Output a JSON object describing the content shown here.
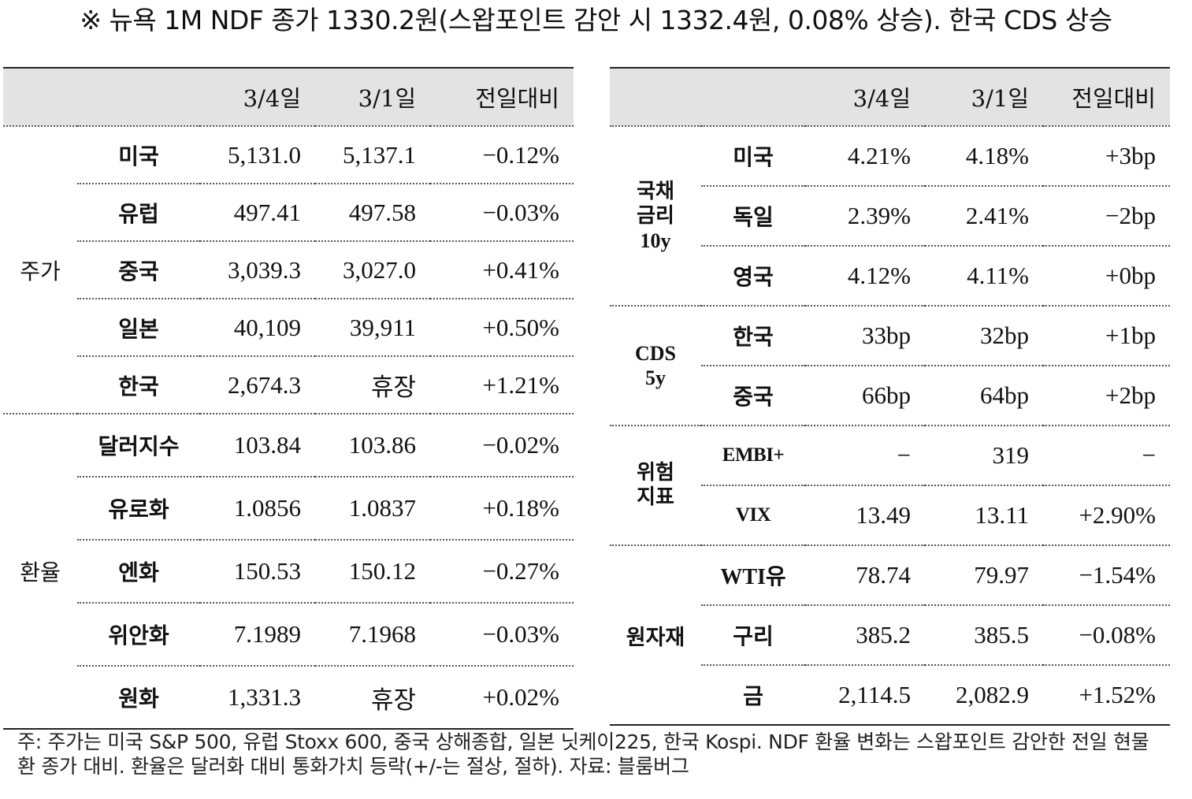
{
  "title": "※ 뉴욕 1M NDF 종가 1330.2원(스왑포인트 감안 시 1332.4원, 0.08% 상승). 한국 CDS 상승",
  "left": {
    "headers": [
      "3/4일",
      "3/1일",
      "전일대비"
    ],
    "groups": [
      {
        "label": "주가",
        "rows": [
          {
            "name": "미국",
            "d1": "5,131.0",
            "d2": "5,137.1",
            "chg": "−0.12%"
          },
          {
            "name": "유럽",
            "d1": "497.41",
            "d2": "497.58",
            "chg": "−0.03%"
          },
          {
            "name": "중국",
            "d1": "3,039.3",
            "d2": "3,027.0",
            "chg": "+0.41%"
          },
          {
            "name": "일본",
            "d1": "40,109",
            "d2": "39,911",
            "chg": "+0.50%"
          },
          {
            "name": "한국",
            "d1": "2,674.3",
            "d2": "휴장",
            "chg": "+1.21%"
          }
        ]
      },
      {
        "label": "환율",
        "rows": [
          {
            "name": "달러지수",
            "d1": "103.84",
            "d2": "103.86",
            "chg": "−0.02%"
          },
          {
            "name": "유로화",
            "d1": "1.0856",
            "d2": "1.0837",
            "chg": "+0.18%"
          },
          {
            "name": "엔화",
            "d1": "150.53",
            "d2": "150.12",
            "chg": "−0.27%"
          },
          {
            "name": "위안화",
            "d1": "7.1989",
            "d2": "7.1968",
            "chg": "−0.03%"
          },
          {
            "name": "원화",
            "d1": "1,331.3",
            "d2": "휴장",
            "chg": "+0.02%"
          }
        ]
      }
    ]
  },
  "right": {
    "headers": [
      "3/4일",
      "3/1일",
      "전일대비"
    ],
    "groups": [
      {
        "label_lines": [
          "국채",
          "금리",
          "10y"
        ],
        "rows": [
          {
            "name": "미국",
            "d1": "4.21%",
            "d2": "4.18%",
            "chg": "+3bp"
          },
          {
            "name": "독일",
            "d1": "2.39%",
            "d2": "2.41%",
            "chg": "−2bp"
          },
          {
            "name": "영국",
            "d1": "4.12%",
            "d2": "4.11%",
            "chg": "+0bp"
          }
        ]
      },
      {
        "label_lines": [
          "CDS",
          "5y"
        ],
        "rows": [
          {
            "name": "한국",
            "d1": "33bp",
            "d2": "32bp",
            "chg": "+1bp"
          },
          {
            "name": "중국",
            "d1": "66bp",
            "d2": "64bp",
            "chg": "+2bp"
          }
        ]
      },
      {
        "label_lines": [
          "위험",
          "지표"
        ],
        "rows": [
          {
            "name": "EMBI+",
            "d1": "−",
            "d2": "319",
            "chg": "−"
          },
          {
            "name": "VIX",
            "d1": "13.49",
            "d2": "13.11",
            "chg": "+2.90%"
          }
        ]
      },
      {
        "label_lines": [
          "원자재"
        ],
        "rows": [
          {
            "name": "WTI유",
            "d1": "78.74",
            "d2": "79.97",
            "chg": "−1.54%"
          },
          {
            "name": "구리",
            "d1": "385.2",
            "d2": "385.5",
            "chg": "−0.08%"
          },
          {
            "name": "금",
            "d1": "2,114.5",
            "d2": "2,082.9",
            "chg": "+1.52%"
          }
        ]
      }
    ]
  },
  "footnote": "주: 주가는 미국 S&P 500, 유럽 Stoxx 600, 중국 상해종합, 일본 닛케이225, 한국 Kospi. NDF 환율 변화는 스왑포인트 감안한 전일 현물환 종가 대비. 환율은 달러화 대비 통화가치 등락(+/-는 절상, 절하). 자료: 블룸버그"
}
